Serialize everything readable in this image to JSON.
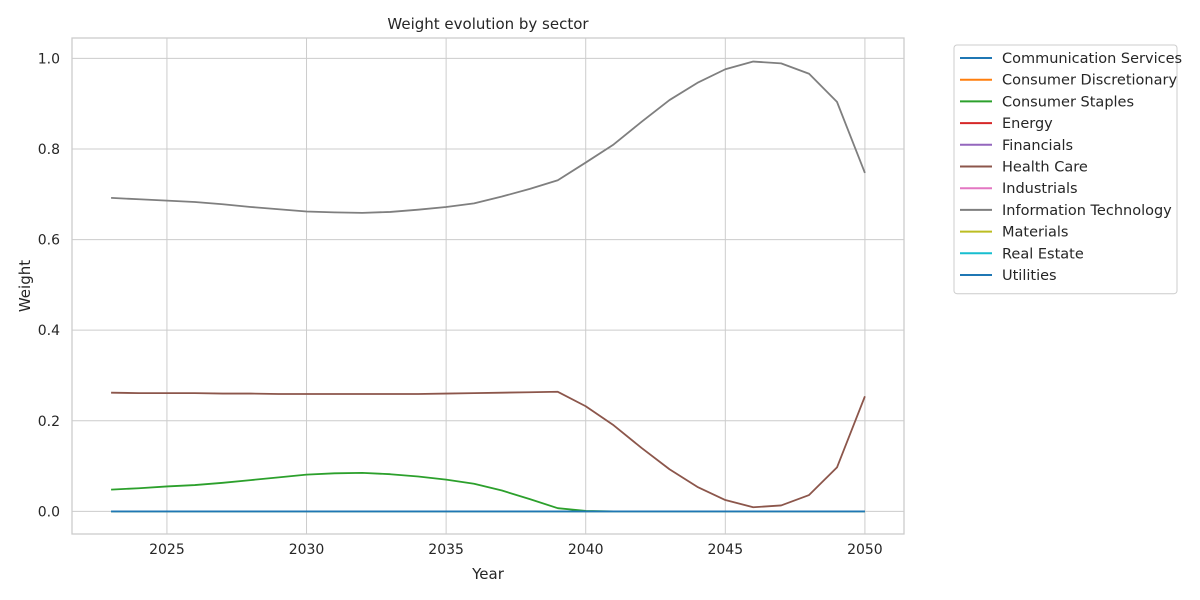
{
  "chart_data": {
    "type": "line",
    "title": "Weight evolution by sector",
    "xlabel": "Year",
    "ylabel": "Weight",
    "xlim": [
      2021.6,
      2051.4
    ],
    "ylim": [
      -0.05,
      1.045
    ],
    "x_ticks": [
      2025,
      2030,
      2035,
      2040,
      2045,
      2050
    ],
    "y_ticks": [
      0.0,
      0.2,
      0.4,
      0.6,
      0.8,
      1.0
    ],
    "x_tick_labels": [
      "2025",
      "2030",
      "2035",
      "2040",
      "2045",
      "2050"
    ],
    "y_tick_labels": [
      "0.0",
      "0.2",
      "0.4",
      "0.6",
      "0.8",
      "1.0"
    ],
    "grid": true,
    "legend_position": "outside-top-right",
    "x": [
      2023,
      2024,
      2025,
      2026,
      2027,
      2028,
      2029,
      2030,
      2031,
      2032,
      2033,
      2034,
      2035,
      2036,
      2037,
      2038,
      2039,
      2040,
      2041,
      2042,
      2043,
      2044,
      2045,
      2046,
      2047,
      2048,
      2049,
      2050
    ],
    "series": [
      {
        "name": "Communication Services",
        "color": "#1f77b4",
        "values": [
          0,
          0,
          0,
          0,
          0,
          0,
          0,
          0,
          0,
          0,
          0,
          0,
          0,
          0,
          0,
          0,
          0,
          0,
          0,
          0,
          0,
          0,
          0,
          0,
          0,
          0,
          0,
          0
        ]
      },
      {
        "name": "Consumer Discretionary",
        "color": "#ff7f0e",
        "values": [
          0,
          0,
          0,
          0,
          0,
          0,
          0,
          0,
          0,
          0,
          0,
          0,
          0,
          0,
          0,
          0,
          0,
          0,
          0,
          0,
          0,
          0,
          0,
          0,
          0,
          0,
          0,
          0
        ]
      },
      {
        "name": "Consumer Staples",
        "color": "#2ca02c",
        "values": [
          0.048,
          0.051,
          0.055,
          0.058,
          0.063,
          0.069,
          0.075,
          0.081,
          0.084,
          0.085,
          0.082,
          0.077,
          0.07,
          0.061,
          0.046,
          0.027,
          0.007,
          0.001,
          0,
          0,
          0,
          0,
          0,
          0,
          0,
          0,
          0,
          0
        ]
      },
      {
        "name": "Energy",
        "color": "#d62728",
        "values": [
          0,
          0,
          0,
          0,
          0,
          0,
          0,
          0,
          0,
          0,
          0,
          0,
          0,
          0,
          0,
          0,
          0,
          0,
          0,
          0,
          0,
          0,
          0,
          0,
          0,
          0,
          0,
          0
        ]
      },
      {
        "name": "Financials",
        "color": "#9467bd",
        "values": [
          0,
          0,
          0,
          0,
          0,
          0,
          0,
          0,
          0,
          0,
          0,
          0,
          0,
          0,
          0,
          0,
          0,
          0,
          0,
          0,
          0,
          0,
          0,
          0,
          0,
          0,
          0,
          0
        ]
      },
      {
        "name": "Health Care",
        "color": "#8c564b",
        "values": [
          0.262,
          0.261,
          0.261,
          0.261,
          0.26,
          0.26,
          0.259,
          0.259,
          0.259,
          0.259,
          0.259,
          0.259,
          0.26,
          0.261,
          0.262,
          0.263,
          0.264,
          0.232,
          0.19,
          0.14,
          0.093,
          0.054,
          0.025,
          0.009,
          0.013,
          0.036,
          0.097,
          0.254
        ]
      },
      {
        "name": "Industrials",
        "color": "#e377c2",
        "values": [
          0,
          0,
          0,
          0,
          0,
          0,
          0,
          0,
          0,
          0,
          0,
          0,
          0,
          0,
          0,
          0,
          0,
          0,
          0,
          0,
          0,
          0,
          0,
          0,
          0,
          0,
          0,
          0
        ]
      },
      {
        "name": "Information Technology",
        "color": "#7f7f7f",
        "values": [
          0.692,
          0.689,
          0.686,
          0.683,
          0.678,
          0.672,
          0.667,
          0.662,
          0.66,
          0.659,
          0.661,
          0.666,
          0.672,
          0.68,
          0.695,
          0.712,
          0.731,
          0.77,
          0.81,
          0.86,
          0.908,
          0.946,
          0.976,
          0.993,
          0.989,
          0.966,
          0.904,
          0.747
        ]
      },
      {
        "name": "Materials",
        "color": "#bcbd22",
        "values": [
          0,
          0,
          0,
          0,
          0,
          0,
          0,
          0,
          0,
          0,
          0,
          0,
          0,
          0,
          0,
          0,
          0,
          0,
          0,
          0,
          0,
          0,
          0,
          0,
          0,
          0,
          0,
          0
        ]
      },
      {
        "name": "Real Estate",
        "color": "#17becf",
        "values": [
          0,
          0,
          0,
          0,
          0,
          0,
          0,
          0,
          0,
          0,
          0,
          0,
          0,
          0,
          0,
          0,
          0,
          0,
          0,
          0,
          0,
          0,
          0,
          0,
          0,
          0,
          0,
          0
        ]
      },
      {
        "name": "Utilities",
        "color": "#1f77b4",
        "values": [
          0,
          0,
          0,
          0,
          0,
          0,
          0,
          0,
          0,
          0,
          0,
          0,
          0,
          0,
          0,
          0,
          0,
          0,
          0,
          0,
          0,
          0,
          0,
          0,
          0,
          0,
          0,
          0
        ]
      }
    ]
  }
}
